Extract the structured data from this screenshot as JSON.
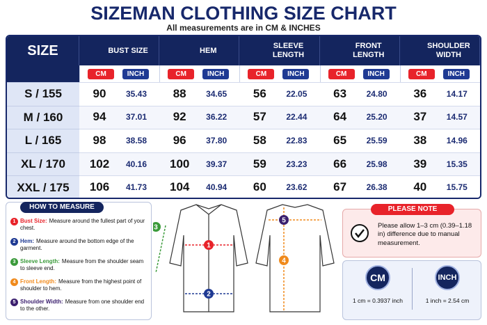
{
  "header": {
    "title": "SIZEMAN CLOTHING SIZE CHART",
    "subtitle": "All measurements are in CM & INCHES"
  },
  "table": {
    "size_header": "SIZE",
    "columns": [
      "BUST SIZE",
      "HEM",
      "SLEEVE LENGTH",
      "FRONT LENGTH",
      "SHOULDER WIDTH"
    ],
    "units": [
      "CM",
      "INCH"
    ],
    "rows": [
      {
        "size": "S / 155",
        "values": [
          "90",
          "35.43",
          "88",
          "34.65",
          "56",
          "22.05",
          "63",
          "24.80",
          "36",
          "14.17"
        ]
      },
      {
        "size": "M / 160",
        "values": [
          "94",
          "37.01",
          "92",
          "36.22",
          "57",
          "22.44",
          "64",
          "25.20",
          "37",
          "14.57"
        ]
      },
      {
        "size": "L / 165",
        "values": [
          "98",
          "38.58",
          "96",
          "37.80",
          "58",
          "22.83",
          "65",
          "25.59",
          "38",
          "14.96"
        ]
      },
      {
        "size": "XL / 170",
        "values": [
          "102",
          "40.16",
          "100",
          "39.37",
          "59",
          "23.23",
          "66",
          "25.98",
          "39",
          "15.35"
        ]
      },
      {
        "size": "XXL / 175",
        "values": [
          "106",
          "41.73",
          "104",
          "40.94",
          "60",
          "23.62",
          "67",
          "26.38",
          "40",
          "15.75"
        ]
      }
    ]
  },
  "how_to": {
    "title": "HOW TO MEASURE",
    "items": [
      {
        "number": "1",
        "label": "Bust Size:",
        "text": "Measure around the fullest part of your chest."
      },
      {
        "number": "2",
        "label": "Hem:",
        "text": "Measure around the bottom edge of the garment."
      },
      {
        "number": "3",
        "label": "Sleeve Length:",
        "text": "Measure from the shoulder seam to sleeve end."
      },
      {
        "number": "4",
        "label": "Front Length:",
        "text": "Measure from the highest point of shoulder to hem."
      },
      {
        "number": "5",
        "label": "Shoulder Width:",
        "text": "Measure from one shoulder end to the other."
      }
    ]
  },
  "note": {
    "title": "PLEASE NOTE",
    "text": "Please allow 1–3 cm (0.39–1.18 in) difference due to manual measurement."
  },
  "conversion": [
    {
      "unit": "CM",
      "text": "1 cm = 0.3937 inch"
    },
    {
      "unit": "INCH",
      "text": "1 inch = 2.54 cm"
    }
  ]
}
